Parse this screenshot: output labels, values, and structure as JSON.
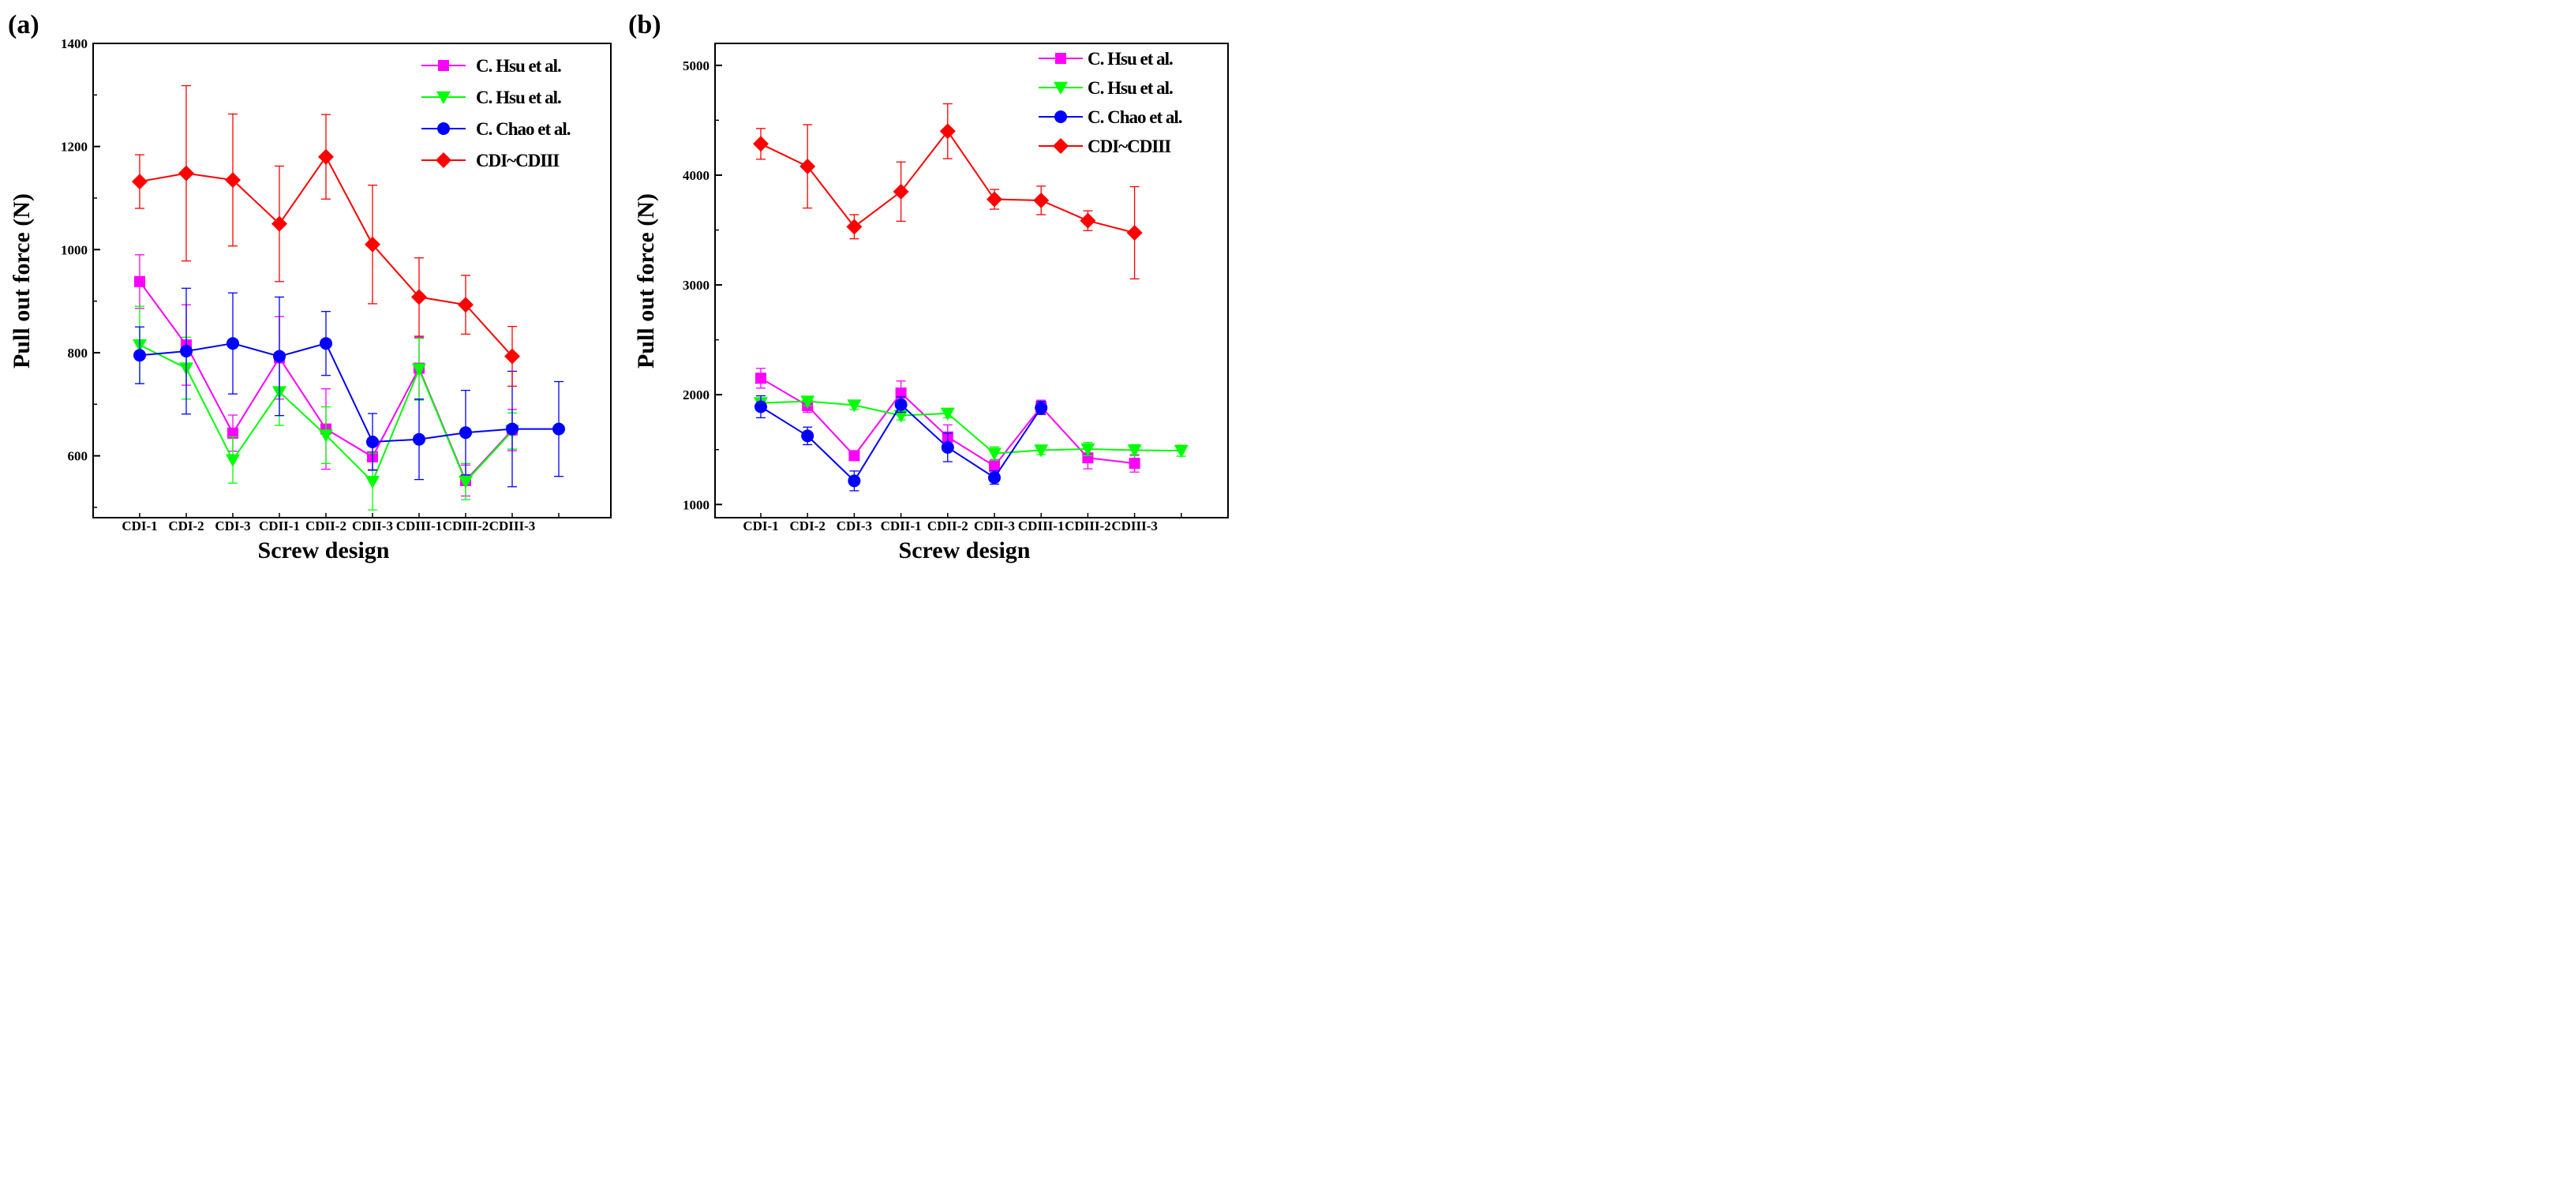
{
  "chart_data": [
    {
      "panel_label": "(a)",
      "type": "line",
      "xlabel": "Screw design",
      "ylabel": "Pull out force (N)",
      "ylim": [
        480,
        1400
      ],
      "yticks": [
        600,
        800,
        1000,
        1200,
        1400
      ],
      "categories": [
        "CDI-1",
        "CDI-2",
        "CDI-3",
        "CDII-1",
        "CDII-2",
        "CDII-3",
        "CDIII-1",
        "CDIII-2",
        "CDIII-3"
      ],
      "x_positions": [
        1,
        2,
        3,
        4,
        5,
        6,
        7,
        8,
        9,
        10
      ],
      "legend_position": "top-right",
      "series": [
        {
          "name": "C. Hsu et al.",
          "color": "#ff00ff",
          "marker": "square",
          "x": [
            1,
            2,
            3,
            4,
            5,
            6,
            7,
            8,
            9
          ],
          "values": [
            938,
            815,
            644,
            790,
            652,
            598,
            770,
            552,
            650
          ],
          "err": [
            52,
            78,
            35,
            80,
            78,
            25,
            60,
            30,
            40
          ]
        },
        {
          "name": "C. Hsu et al.",
          "color": "#00ff00",
          "marker": "triangle-down",
          "x": [
            1,
            2,
            3,
            4,
            5,
            6,
            7,
            8,
            9
          ],
          "values": [
            815,
            770,
            592,
            724,
            640,
            550,
            768,
            550,
            648
          ],
          "err": [
            75,
            60,
            45,
            65,
            55,
            55,
            60,
            35,
            35
          ]
        },
        {
          "name": "C. Chao et al.",
          "color": "#0000ff",
          "marker": "circle",
          "x": [
            1,
            2,
            3,
            4,
            5,
            6,
            7,
            8,
            9,
            10
          ],
          "values": [
            795,
            803,
            818,
            793,
            818,
            627,
            632,
            645,
            652,
            652
          ],
          "err": [
            55,
            122,
            98,
            115,
            62,
            55,
            78,
            82,
            112,
            92
          ]
        },
        {
          "name": "CDI~CDIII",
          "color": "#ff0000",
          "marker": "diamond",
          "x": [
            1,
            2,
            3,
            4,
            5,
            6,
            7,
            8,
            9
          ],
          "values": [
            1132,
            1148,
            1135,
            1050,
            1180,
            1010,
            908,
            893,
            793
          ],
          "err": [
            52,
            170,
            128,
            112,
            82,
            115,
            76,
            57,
            58
          ]
        }
      ]
    },
    {
      "panel_label": "(b)",
      "type": "line",
      "xlabel": "Screw design",
      "ylabel": "Pull out force (N)",
      "ylim": [
        880,
        5200
      ],
      "yticks": [
        1000,
        2000,
        3000,
        4000,
        5000
      ],
      "categories": [
        "CDI-1",
        "CDI-2",
        "CDI-3",
        "CDII-1",
        "CDII-2",
        "CDII-3",
        "CDIII-1",
        "CDIII-2",
        "CDIII-3"
      ],
      "x_positions": [
        1,
        2,
        3,
        4,
        5,
        6,
        7,
        8,
        9,
        10
      ],
      "legend_position": "top-right",
      "series": [
        {
          "name": "C. Hsu et al.",
          "color": "#ff00ff",
          "marker": "square",
          "x": [
            1,
            2,
            3,
            4,
            5,
            6,
            7,
            8,
            9
          ],
          "values": [
            2150,
            1900,
            1445,
            2015,
            1615,
            1350,
            1890,
            1425,
            1375
          ],
          "err": [
            90,
            60,
            40,
            110,
            110,
            60,
            60,
            100,
            80
          ]
        },
        {
          "name": "C. Hsu et al.",
          "color": "#00ff00",
          "marker": "triangle-down",
          "x": [
            1,
            2,
            3,
            4,
            5,
            6,
            7,
            8,
            9,
            10
          ],
          "values": [
            1925,
            1940,
            1905,
            1810,
            1830,
            1465,
            1495,
            1505,
            1495,
            1490
          ],
          "err": [
            40,
            40,
            40,
            40,
            40,
            60,
            40,
            60,
            50,
            50
          ]
        },
        {
          "name": "C. Chao et al.",
          "color": "#0000ff",
          "marker": "circle",
          "x": [
            1,
            2,
            3,
            4,
            5,
            6,
            7
          ],
          "values": [
            1890,
            1625,
            1215,
            1910,
            1520,
            1245,
            1880
          ],
          "err": [
            100,
            80,
            90,
            70,
            130,
            60,
            60
          ]
        },
        {
          "name": "CDI~CDIII",
          "color": "#ff0000",
          "marker": "diamond",
          "x": [
            1,
            2,
            3,
            4,
            5,
            6,
            7,
            8,
            9
          ],
          "values": [
            4285,
            4080,
            3530,
            3850,
            4400,
            3780,
            3770,
            3585,
            3475
          ],
          "err": [
            140,
            380,
            110,
            270,
            250,
            90,
            130,
            90,
            420
          ]
        }
      ]
    }
  ]
}
